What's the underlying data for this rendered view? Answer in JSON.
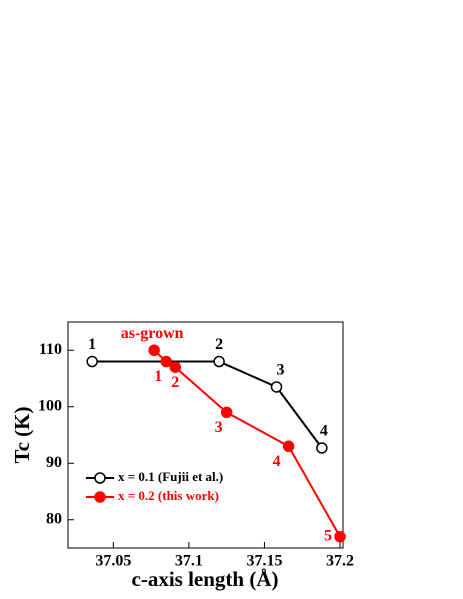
{
  "chart_data": {
    "type": "line",
    "xlabel": "c-axis length (Å)",
    "ylabel": "Tc (K)",
    "xlim": [
      37.02,
      37.2
    ],
    "xticks": [
      37.05,
      37.1,
      37.15,
      37.2
    ],
    "ylim": [
      75,
      115
    ],
    "yticks": [
      80,
      90,
      100,
      110
    ],
    "legend": "lower left",
    "series": [
      {
        "name": "x = 0.1 (Fujii et al.)",
        "color": "#000000",
        "marker": "open",
        "x": [
          37.036,
          37.12,
          37.158,
          37.188
        ],
        "values": [
          108,
          108,
          103.5,
          92.7
        ],
        "point_labels": [
          "1",
          "2",
          "3",
          "4"
        ]
      },
      {
        "name": "x = 0.2 (this work)",
        "color": "#ff0000",
        "marker": "filled",
        "x": [
          37.077,
          37.085,
          37.091,
          37.125,
          37.166,
          37.2
        ],
        "values": [
          110,
          108,
          107,
          99,
          93,
          77
        ],
        "point_labels": [
          "as-grown",
          "1",
          "2",
          "3",
          "4",
          "5"
        ]
      }
    ]
  }
}
